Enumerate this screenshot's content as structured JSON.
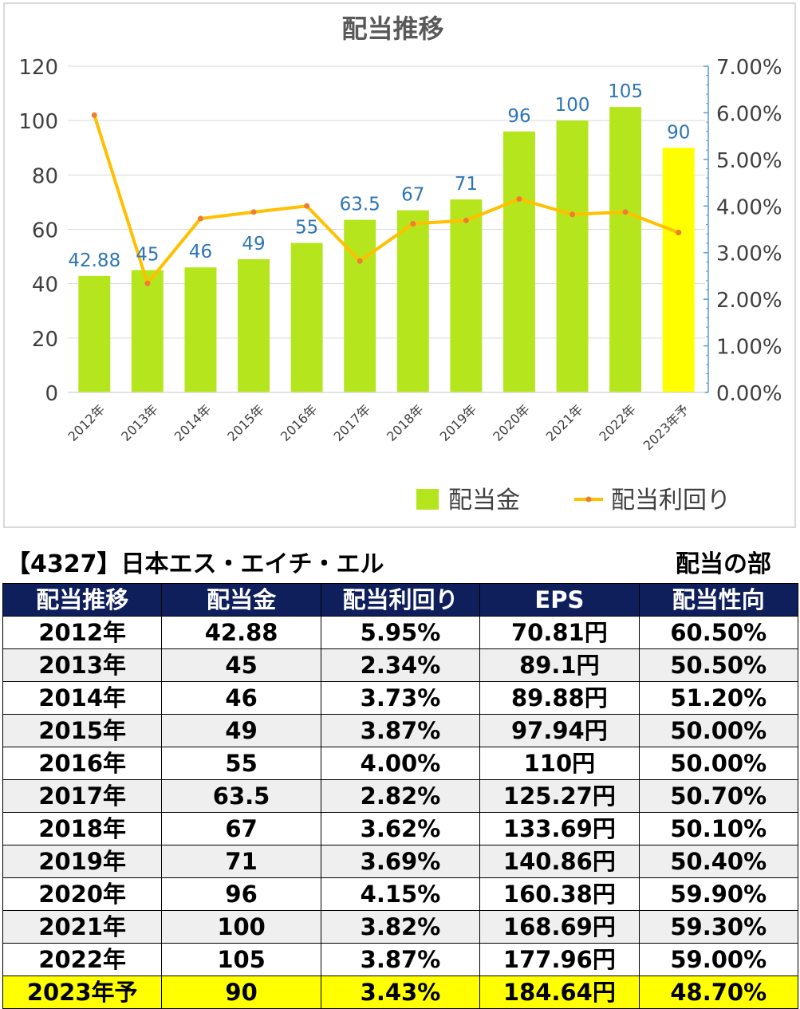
{
  "chart_data": {
    "type": "bar+line",
    "title": "配当推移",
    "categories": [
      "2012年",
      "2013年",
      "2014年",
      "2015年",
      "2016年",
      "2017年",
      "2018年",
      "2019年",
      "2020年",
      "2021年",
      "2022年",
      "2023年予"
    ],
    "series": [
      {
        "name": "配当金",
        "type": "bar",
        "axis": "left",
        "values": [
          42.88,
          45,
          46,
          49,
          55,
          63.5,
          67,
          71,
          96,
          100,
          105,
          90
        ],
        "labels": [
          "42.88",
          "45",
          "46",
          "49",
          "55",
          "63.5",
          "67",
          "71",
          "96",
          "100",
          "105",
          "90"
        ],
        "color": "#b5e61d",
        "highlight_last_color": "#ffff00"
      },
      {
        "name": "配当利回り",
        "type": "line",
        "axis": "right",
        "values": [
          5.95,
          2.34,
          3.73,
          3.87,
          4.0,
          2.82,
          3.62,
          3.69,
          4.15,
          3.82,
          3.87,
          3.43
        ],
        "color": "#ffc000",
        "marker_color": "#ed7d31"
      }
    ],
    "yleft": {
      "min": 0,
      "max": 120,
      "ticks": [
        "0",
        "20",
        "40",
        "60",
        "80",
        "100",
        "120"
      ]
    },
    "yright": {
      "min": 0,
      "max": 7,
      "ticks": [
        "0.00%",
        "1.00%",
        "2.00%",
        "3.00%",
        "4.00%",
        "5.00%",
        "6.00%",
        "7.00%"
      ]
    },
    "legend_position": "bottom-right",
    "grid": true,
    "label_color": "#2e75b6"
  },
  "table": {
    "title": "【4327】日本エス・エイチ・エル",
    "section": "配当の部",
    "headers": [
      "配当推移",
      "配当金",
      "配当利回り",
      "EPS",
      "配当性向"
    ],
    "rows": [
      [
        "2012年",
        "42.88",
        "5.95%",
        "70.81円",
        "60.50%"
      ],
      [
        "2013年",
        "45",
        "2.34%",
        "89.1円",
        "50.50%"
      ],
      [
        "2014年",
        "46",
        "3.73%",
        "89.88円",
        "51.20%"
      ],
      [
        "2015年",
        "49",
        "3.87%",
        "97.94円",
        "50.00%"
      ],
      [
        "2016年",
        "55",
        "4.00%",
        "110円",
        "50.00%"
      ],
      [
        "2017年",
        "63.5",
        "2.82%",
        "125.27円",
        "50.70%"
      ],
      [
        "2018年",
        "67",
        "3.62%",
        "133.69円",
        "50.10%"
      ],
      [
        "2019年",
        "71",
        "3.69%",
        "140.86円",
        "50.40%"
      ],
      [
        "2020年",
        "96",
        "4.15%",
        "160.38円",
        "59.90%"
      ],
      [
        "2021年",
        "100",
        "3.82%",
        "168.69円",
        "59.30%"
      ],
      [
        "2022年",
        "105",
        "3.87%",
        "177.96円",
        "59.00%"
      ],
      [
        "2023年予",
        "90",
        "3.43%",
        "184.64円",
        "48.70%"
      ]
    ]
  }
}
